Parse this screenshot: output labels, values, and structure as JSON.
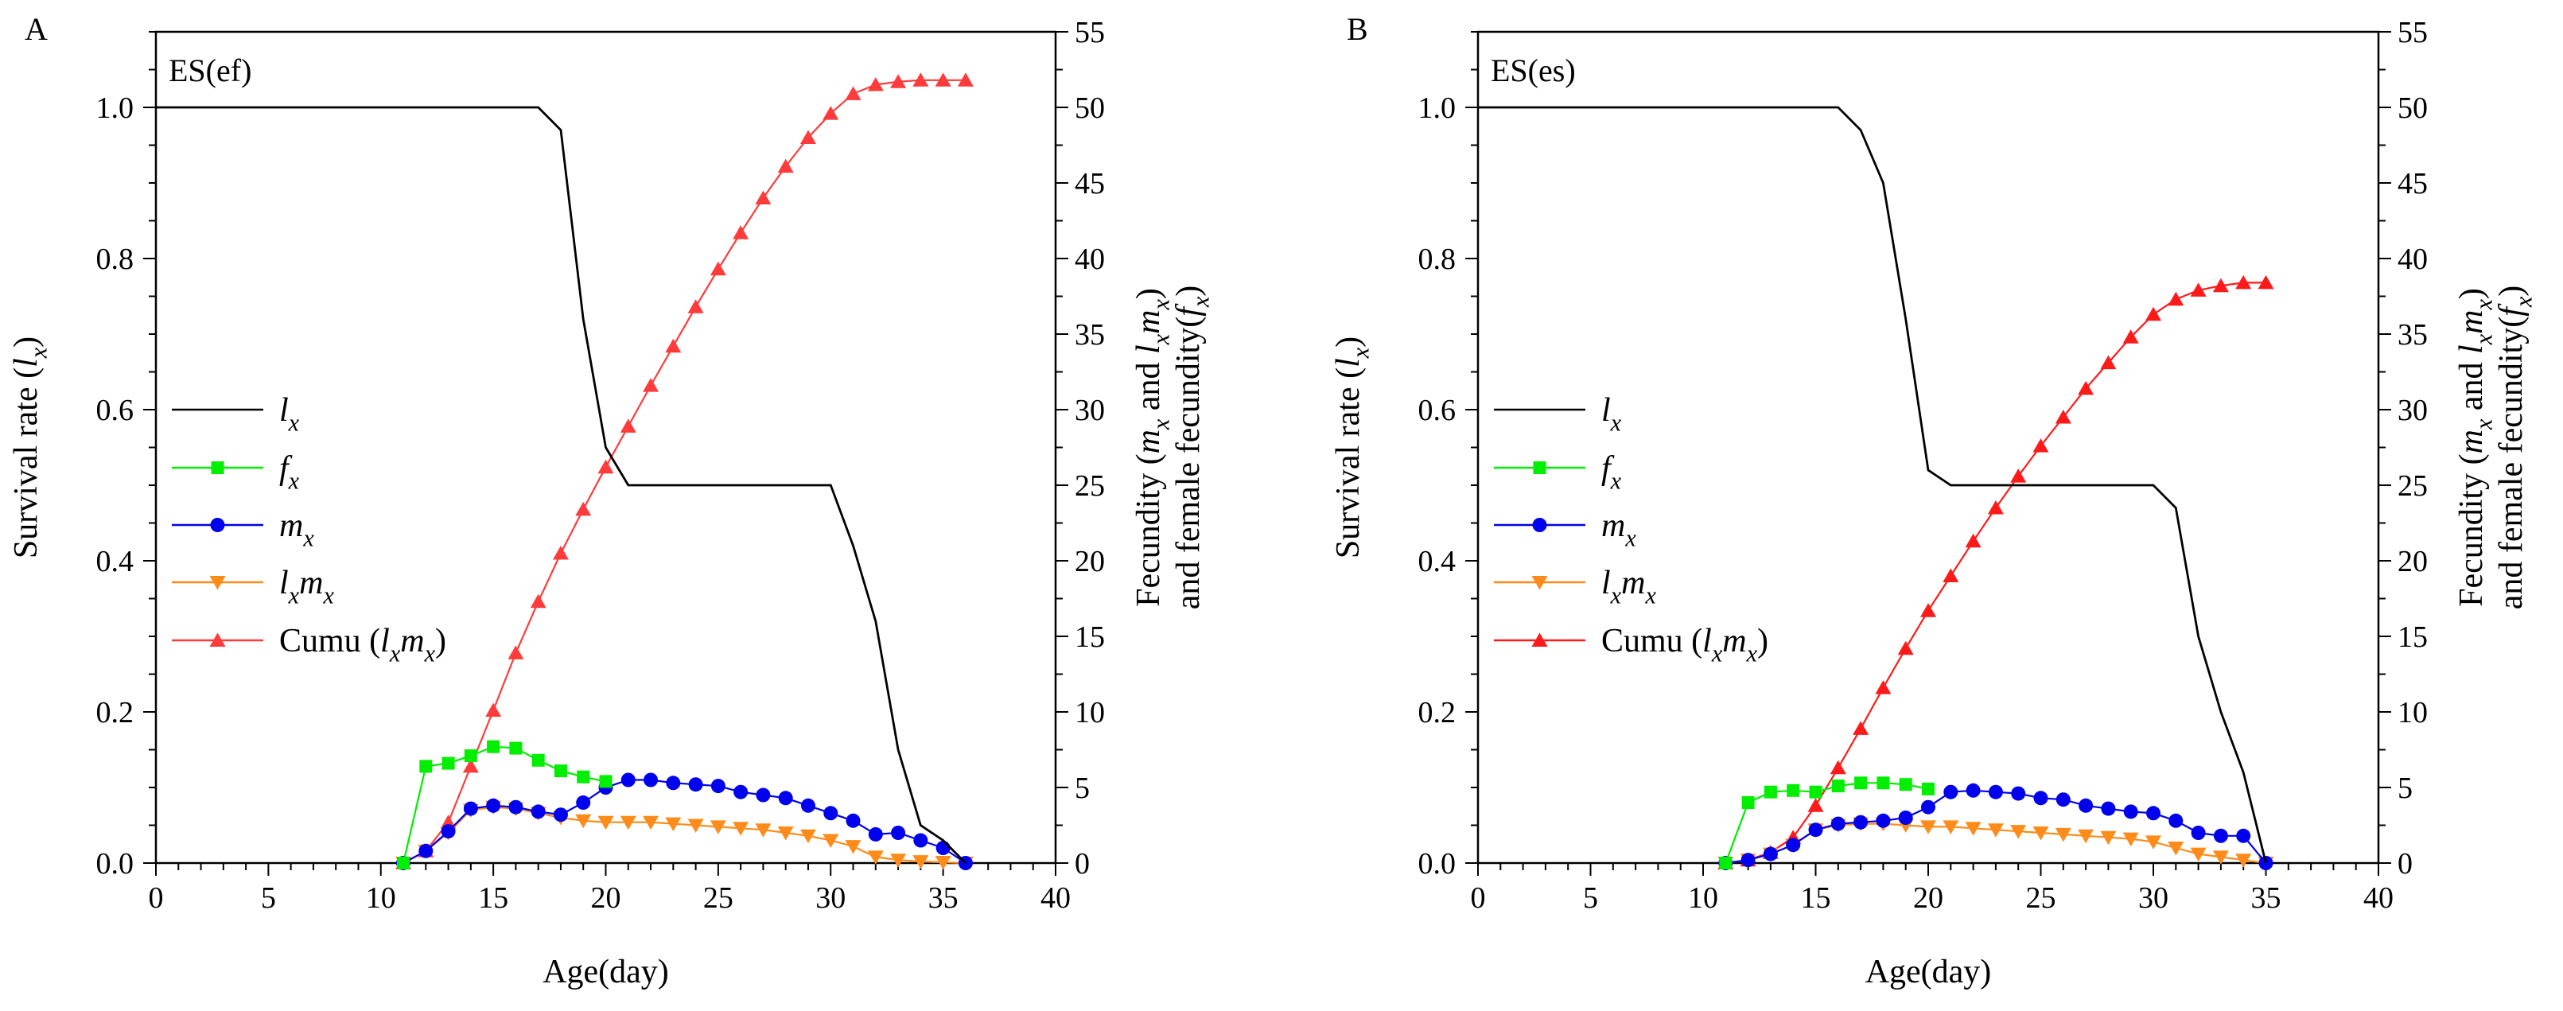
{
  "chart_data": [
    {
      "panel_label": "A",
      "type": "line",
      "title": "ES(ef)",
      "xlabel": "Age(day)",
      "ylabel": "Survival rate (lx)",
      "y2label_line1": "Fecundity (mx and lxmx)",
      "y2label_line2": "and female fecundity(fx)",
      "xlim": [
        0,
        40
      ],
      "ylim": [
        0,
        1.1
      ],
      "y2lim": [
        0,
        55
      ],
      "x_ticks": [
        0,
        5,
        10,
        15,
        20,
        25,
        30,
        35,
        40
      ],
      "y_ticks": [
        "0.0",
        "0.2",
        "0.4",
        "0.6",
        "0.8",
        "1.0"
      ],
      "y2_ticks": [
        0,
        5,
        10,
        15,
        20,
        25,
        30,
        35,
        40,
        45,
        50,
        55
      ],
      "legend_position": "center-left",
      "series": [
        {
          "key": "lx",
          "name": "lx",
          "axis": "left",
          "color": "#000000",
          "marker": "none",
          "x": [
            0,
            17,
            18,
            19,
            20,
            21,
            22,
            23,
            24,
            25,
            26,
            27,
            28,
            29,
            30,
            31,
            32,
            33,
            34,
            35,
            36
          ],
          "y": [
            1.0,
            1.0,
            0.97,
            0.72,
            0.55,
            0.5,
            0.5,
            0.5,
            0.5,
            0.5,
            0.5,
            0.5,
            0.5,
            0.5,
            0.5,
            0.42,
            0.32,
            0.15,
            0.05,
            0.03,
            0.0
          ]
        },
        {
          "key": "fx",
          "name": "fx",
          "axis": "right",
          "color": "#00ee00",
          "marker": "square",
          "x": [
            11,
            12,
            13,
            14,
            15,
            16,
            17,
            18,
            19,
            20
          ],
          "y": [
            0,
            6.4,
            6.6,
            7.1,
            7.7,
            7.6,
            6.8,
            6.1,
            5.7,
            5.4
          ]
        },
        {
          "key": "mx",
          "name": "mx",
          "axis": "right",
          "color": "#0000ee",
          "marker": "circle",
          "x": [
            11,
            12,
            13,
            14,
            15,
            16,
            17,
            18,
            19,
            20,
            21,
            22,
            23,
            24,
            25,
            26,
            27,
            28,
            29,
            30,
            31,
            32,
            33,
            34,
            35,
            36
          ],
          "y": [
            0,
            0.8,
            2.1,
            3.6,
            3.8,
            3.7,
            3.4,
            3.2,
            4.0,
            5.0,
            5.5,
            5.5,
            5.3,
            5.2,
            5.1,
            4.7,
            4.5,
            4.3,
            3.8,
            3.3,
            2.8,
            1.9,
            2.0,
            1.5,
            1.0,
            0.0
          ]
        },
        {
          "key": "lxmx",
          "name": "lxmx",
          "axis": "right",
          "color": "#ff8c1a",
          "marker": "triangle-down",
          "x": [
            11,
            12,
            13,
            14,
            15,
            16,
            17,
            18,
            19,
            20,
            21,
            22,
            23,
            24,
            25,
            26,
            27,
            28,
            29,
            30,
            31,
            32,
            33,
            34,
            35,
            36
          ],
          "y": [
            0,
            0.8,
            2.0,
            3.5,
            3.7,
            3.6,
            3.3,
            3.0,
            2.8,
            2.7,
            2.7,
            2.7,
            2.6,
            2.5,
            2.4,
            2.3,
            2.2,
            2.0,
            1.8,
            1.5,
            1.1,
            0.4,
            0.2,
            0.1,
            0.05,
            0.0
          ]
        },
        {
          "key": "cumu",
          "name": "Cumu (lxmx)",
          "axis": "right",
          "color": "#ff3b3b",
          "marker": "triangle-up",
          "x": [
            11,
            12,
            13,
            14,
            15,
            16,
            17,
            18,
            19,
            20,
            21,
            22,
            23,
            24,
            25,
            26,
            27,
            28,
            29,
            30,
            31,
            32,
            33,
            34,
            35,
            36
          ],
          "y": [
            0,
            0.8,
            2.7,
            6.4,
            10.1,
            13.9,
            17.3,
            20.5,
            23.4,
            26.2,
            28.9,
            31.6,
            34.2,
            36.8,
            39.3,
            41.7,
            44.0,
            46.1,
            48.0,
            49.6,
            50.9,
            51.5,
            51.7,
            51.8,
            51.8,
            51.8
          ]
        }
      ],
      "legend_labels": {
        "lx_main": "l",
        "lx_sub": "x",
        "fx_main": "f",
        "fx_sub": "x",
        "mx_main": "m",
        "mx_sub": "x",
        "l_main": "l",
        "l_sub": "x",
        "m_main": "m",
        "m_sub": "x",
        "cumu_prefix": "Cumu (",
        "cumu_suffix": ")"
      }
    },
    {
      "panel_label": "B",
      "type": "line",
      "title": "ES(es)",
      "xlabel": "Age(day)",
      "ylabel": "Survival rate (lx)",
      "y2label_line1": "Fecundity (mx and lxmx)",
      "y2label_line2": "and female fecundity(fx)",
      "xlim": [
        0,
        40
      ],
      "ylim": [
        0,
        1.1
      ],
      "y2lim": [
        0,
        55
      ],
      "x_ticks": [
        0,
        5,
        10,
        15,
        20,
        25,
        30,
        35,
        40
      ],
      "y_ticks": [
        "0.0",
        "0.2",
        "0.4",
        "0.6",
        "0.8",
        "1.0"
      ],
      "y2_ticks": [
        0,
        5,
        10,
        15,
        20,
        25,
        30,
        35,
        40,
        45,
        50,
        55
      ],
      "legend_position": "center-left",
      "series": [
        {
          "key": "lx",
          "name": "lx",
          "axis": "left",
          "color": "#000000",
          "marker": "none",
          "x": [
            0,
            16,
            17,
            18,
            19,
            20,
            21,
            22,
            23,
            24,
            25,
            26,
            27,
            28,
            29,
            30,
            31,
            32,
            33,
            34,
            35
          ],
          "y": [
            1.0,
            1.0,
            0.97,
            0.9,
            0.72,
            0.52,
            0.5,
            0.5,
            0.5,
            0.5,
            0.5,
            0.5,
            0.5,
            0.5,
            0.5,
            0.5,
            0.47,
            0.3,
            0.2,
            0.12,
            0.0
          ]
        },
        {
          "key": "fx",
          "name": "fx",
          "axis": "right",
          "color": "#00ee00",
          "marker": "square",
          "x": [
            11,
            12,
            13,
            14,
            15,
            16,
            17,
            18,
            19,
            20
          ],
          "y": [
            0,
            4.0,
            4.7,
            4.8,
            4.7,
            5.1,
            5.3,
            5.3,
            5.2,
            4.9
          ]
        },
        {
          "key": "mx",
          "name": "mx",
          "axis": "right",
          "color": "#0000ee",
          "marker": "circle",
          "x": [
            11,
            12,
            13,
            14,
            15,
            16,
            17,
            18,
            19,
            20,
            21,
            22,
            23,
            24,
            25,
            26,
            27,
            28,
            29,
            30,
            31,
            32,
            33,
            34,
            35
          ],
          "y": [
            0,
            0.2,
            0.6,
            1.2,
            2.2,
            2.6,
            2.7,
            2.8,
            3.0,
            3.7,
            4.7,
            4.8,
            4.7,
            4.6,
            4.3,
            4.2,
            3.8,
            3.6,
            3.4,
            3.3,
            2.8,
            2.0,
            1.8,
            1.8,
            0.0
          ]
        },
        {
          "key": "lxmx",
          "name": "lxmx",
          "axis": "right",
          "color": "#ff8c1a",
          "marker": "triangle-down",
          "x": [
            11,
            12,
            13,
            14,
            15,
            16,
            17,
            18,
            19,
            20,
            21,
            22,
            23,
            24,
            25,
            26,
            27,
            28,
            29,
            30,
            31,
            32,
            33,
            34,
            35
          ],
          "y": [
            0,
            0.2,
            0.6,
            1.2,
            2.2,
            2.5,
            2.6,
            2.6,
            2.5,
            2.4,
            2.4,
            2.3,
            2.2,
            2.1,
            2.0,
            1.9,
            1.8,
            1.7,
            1.6,
            1.4,
            1.0,
            0.6,
            0.4,
            0.2,
            0.0
          ]
        },
        {
          "key": "cumu",
          "name": "Cumu (lxmx)",
          "axis": "right",
          "color": "#ff1a1a",
          "marker": "triangle-up",
          "x": [
            11,
            12,
            13,
            14,
            15,
            16,
            17,
            18,
            19,
            20,
            21,
            22,
            23,
            24,
            25,
            26,
            27,
            28,
            29,
            30,
            31,
            32,
            33,
            34,
            35
          ],
          "y": [
            0,
            0.2,
            0.7,
            1.7,
            3.8,
            6.3,
            8.9,
            11.6,
            14.2,
            16.7,
            19.0,
            21.3,
            23.5,
            25.6,
            27.6,
            29.5,
            31.4,
            33.1,
            34.8,
            36.3,
            37.3,
            37.9,
            38.2,
            38.4,
            38.4
          ]
        }
      ],
      "legend_labels": {
        "lx_main": "l",
        "lx_sub": "x",
        "fx_main": "f",
        "fx_sub": "x",
        "mx_main": "m",
        "mx_sub": "x",
        "l_main": "l",
        "l_sub": "x",
        "m_main": "m",
        "m_sub": "x",
        "cumu_prefix": "Cumu (",
        "cumu_suffix": ")"
      }
    }
  ]
}
